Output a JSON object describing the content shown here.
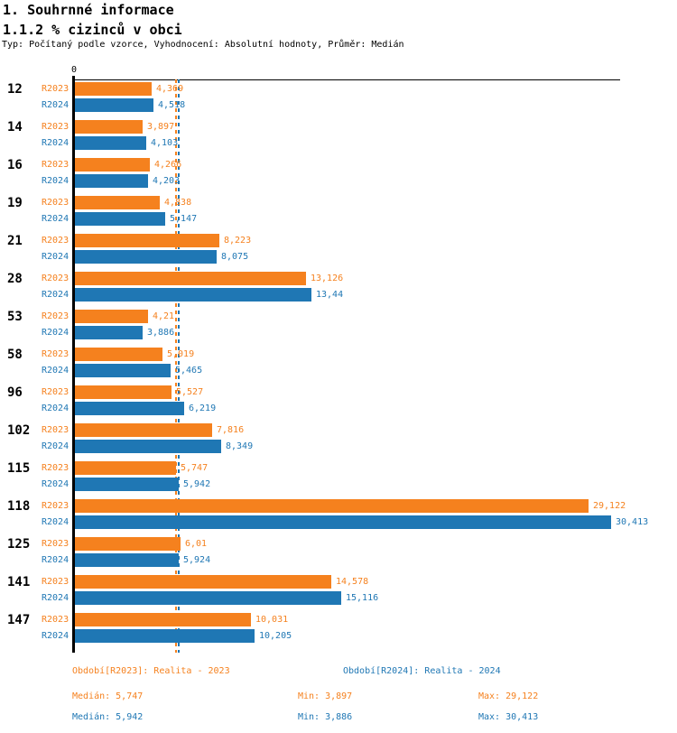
{
  "header": {
    "title1": "1. Souhrnné informace",
    "title2": "1.1.2 % cizinců v obci",
    "subtitle": "Typ: Počítaný podle vzorce, Vyhodnocení: Absolutní hodnoty, Průměr: Medián"
  },
  "chart_data": {
    "type": "bar",
    "orientation": "horizontal",
    "title": "1.1.2 % cizinců v obci",
    "axis": {
      "origin_label": "0",
      "min": 0,
      "max": 30.9,
      "grid": false
    },
    "categories": [
      "12",
      "14",
      "16",
      "19",
      "21",
      "28",
      "53",
      "58",
      "96",
      "102",
      "115",
      "118",
      "125",
      "141",
      "147"
    ],
    "series": [
      {
        "name": "R2023",
        "color": "#f5811e",
        "values": [
          4.369,
          3.897,
          4.266,
          4.838,
          8.223,
          13.126,
          4.21,
          5.019,
          5.527,
          7.816,
          5.747,
          29.122,
          6.01,
          14.578,
          10.031
        ],
        "labels": [
          "4,369",
          "3,897",
          "4,266",
          "4,838",
          "8,223",
          "13,126",
          "4,21",
          "5,019",
          "5,527",
          "7,816",
          "5,747",
          "29,122",
          "6,01",
          "14,578",
          "10,031"
        ],
        "median": 5.747
      },
      {
        "name": "R2024",
        "color": "#1f77b4",
        "values": [
          4.518,
          4.103,
          4.203,
          5.147,
          8.075,
          13.44,
          3.886,
          5.465,
          6.219,
          8.349,
          5.942,
          30.413,
          5.924,
          15.116,
          10.205
        ],
        "labels": [
          "4,518",
          "4,103",
          "4,203",
          "5,147",
          "8,075",
          "13,44",
          "3,886",
          "5,465",
          "6,219",
          "8,349",
          "5,942",
          "30,413",
          "5,924",
          "15,116",
          "10,205"
        ],
        "median": 5.942
      }
    ],
    "legend_position": "bottom"
  },
  "footer": {
    "legend": [
      {
        "label": "Období[R2023]: Realita - 2023",
        "color": "#f5811e"
      },
      {
        "label": "Období[R2024]: Realita - 2024",
        "color": "#1f77b4"
      }
    ],
    "stats": [
      {
        "median": "Medián: 5,747",
        "min": "Min: 3,897",
        "max": "Max: 29,122",
        "color": "#f5811e"
      },
      {
        "median": "Medián: 5,942",
        "min": "Min: 3,886",
        "max": "Max: 30,413",
        "color": "#1f77b4"
      }
    ]
  },
  "colors": {
    "r2023": "#f5811e",
    "r2024": "#1f77b4",
    "axis": "#000000",
    "background": "#ffffff"
  }
}
